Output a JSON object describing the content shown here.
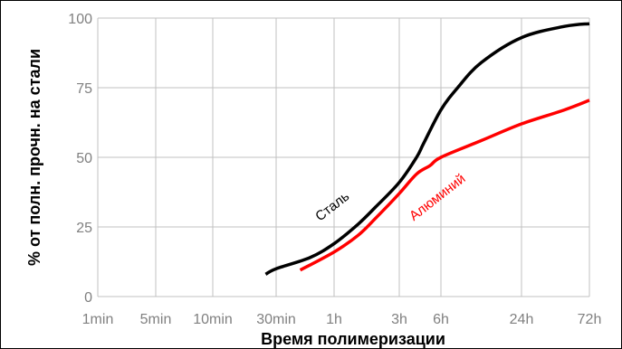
{
  "chart_data": {
    "type": "line",
    "title": "",
    "xlabel": "Время полимеризации",
    "ylabel": "% от полн. прочн. на стали",
    "x_ticks": [
      "1min",
      "5min",
      "10min",
      "30min",
      "1h",
      "3h",
      "6h",
      "24h",
      "72h"
    ],
    "y_ticks": [
      "0",
      "25",
      "50",
      "75",
      "100"
    ],
    "ylim": [
      0,
      100
    ],
    "grid": true,
    "series": [
      {
        "name": "Сталь",
        "color": "#000000",
        "points": [
          [
            "25min",
            8
          ],
          [
            "30min",
            10
          ],
          [
            "45min",
            14
          ],
          [
            "1h",
            19
          ],
          [
            "1.5h",
            26
          ],
          [
            "2h",
            32
          ],
          [
            "3h",
            41
          ],
          [
            "4h",
            50
          ],
          [
            "4.5h",
            55
          ],
          [
            "6h",
            67
          ],
          [
            "8h",
            75
          ],
          [
            "12h",
            84
          ],
          [
            "24h",
            93
          ],
          [
            "48h",
            97
          ],
          [
            "72h",
            98
          ]
        ]
      },
      {
        "name": "Алюминий",
        "color": "#ff0000",
        "points": [
          [
            "40min",
            9.5
          ],
          [
            "1h",
            16
          ],
          [
            "1.5h",
            22
          ],
          [
            "2h",
            28
          ],
          [
            "3h",
            37
          ],
          [
            "4h",
            44
          ],
          [
            "5h",
            47
          ],
          [
            "6h",
            50
          ],
          [
            "12h",
            56
          ],
          [
            "24h",
            62
          ],
          [
            "48h",
            67
          ],
          [
            "72h",
            70.5
          ]
        ]
      }
    ]
  }
}
